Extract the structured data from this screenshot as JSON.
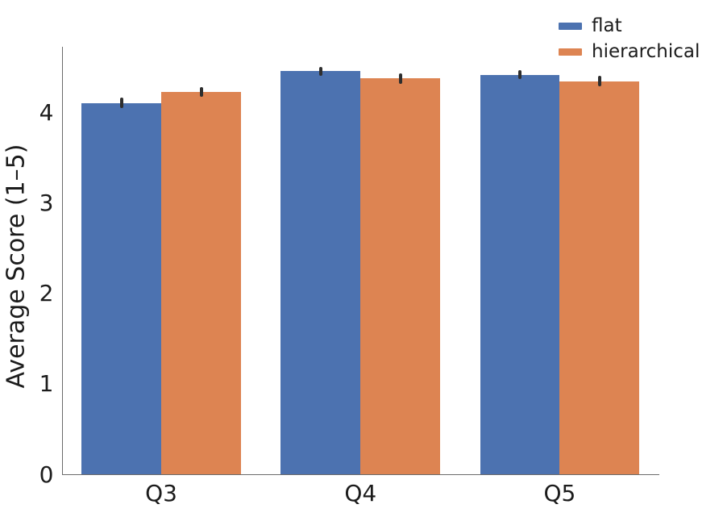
{
  "figure": {
    "background": "#ffffff"
  },
  "chart_data": {
    "type": "bar",
    "title": "",
    "categories": [
      "Q3",
      "Q4",
      "Q5"
    ],
    "series": [
      {
        "name": "flat",
        "color": "#4C72B0",
        "values": [
          4.11,
          4.46,
          4.42
        ],
        "errors": [
          0.06,
          0.05,
          0.05
        ]
      },
      {
        "name": "hierarchical",
        "color": "#DD8452",
        "values": [
          4.23,
          4.38,
          4.35
        ],
        "errors": [
          0.05,
          0.06,
          0.06
        ]
      }
    ],
    "xlabel": "",
    "ylabel": "Average Score (1–5)",
    "yticks": [
      "0",
      "1",
      "2",
      "3",
      "4"
    ],
    "ylim": [
      0,
      4.73
    ],
    "bar_group_width": 0.8,
    "grid": false,
    "legend_position": "upper right",
    "error_bar_color": "#2e2e2e",
    "axis_color": "#6b6b6b",
    "text_color": "#1c1c1c"
  }
}
